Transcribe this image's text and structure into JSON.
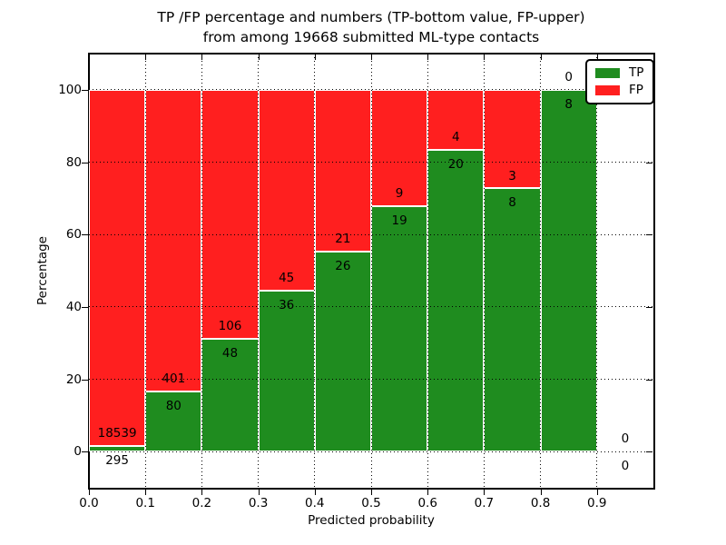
{
  "chart_data": {
    "type": "bar",
    "stacking": "percent",
    "title_line1": "TP /FP percentage and numbers (TP-bottom value, FP-upper)",
    "title_line2": "from among 19668 submitted ML-type contacts",
    "total_contacts": 19668,
    "xlabel": "Predicted probability",
    "ylabel": "Percentage",
    "bin_width": 0.1,
    "bin_starts": [
      0.0,
      0.1,
      0.2,
      0.3,
      0.4,
      0.5,
      0.6,
      0.7,
      0.8,
      0.9
    ],
    "series": [
      {
        "name": "TP",
        "color": "#1f8c1f",
        "values": [
          295,
          80,
          48,
          36,
          26,
          19,
          20,
          8,
          8,
          0
        ]
      },
      {
        "name": "FP",
        "color": "#ff1f1f",
        "values": [
          18539,
          401,
          106,
          45,
          21,
          9,
          4,
          3,
          0,
          0
        ]
      }
    ],
    "xticks": [
      "0.0",
      "0.1",
      "0.2",
      "0.3",
      "0.4",
      "0.5",
      "0.6",
      "0.7",
      "0.8",
      "0.9"
    ],
    "yticks": [
      0,
      20,
      40,
      60,
      80,
      100
    ],
    "xlim": [
      0,
      1.0
    ],
    "ylim": [
      -10,
      110
    ],
    "grid": true,
    "grid_style": "dotted",
    "legend_position": "upper right",
    "legend_items": [
      {
        "label": "TP",
        "color": "#1f8c1f"
      },
      {
        "label": "FP",
        "color": "#ff1f1f"
      }
    ]
  }
}
